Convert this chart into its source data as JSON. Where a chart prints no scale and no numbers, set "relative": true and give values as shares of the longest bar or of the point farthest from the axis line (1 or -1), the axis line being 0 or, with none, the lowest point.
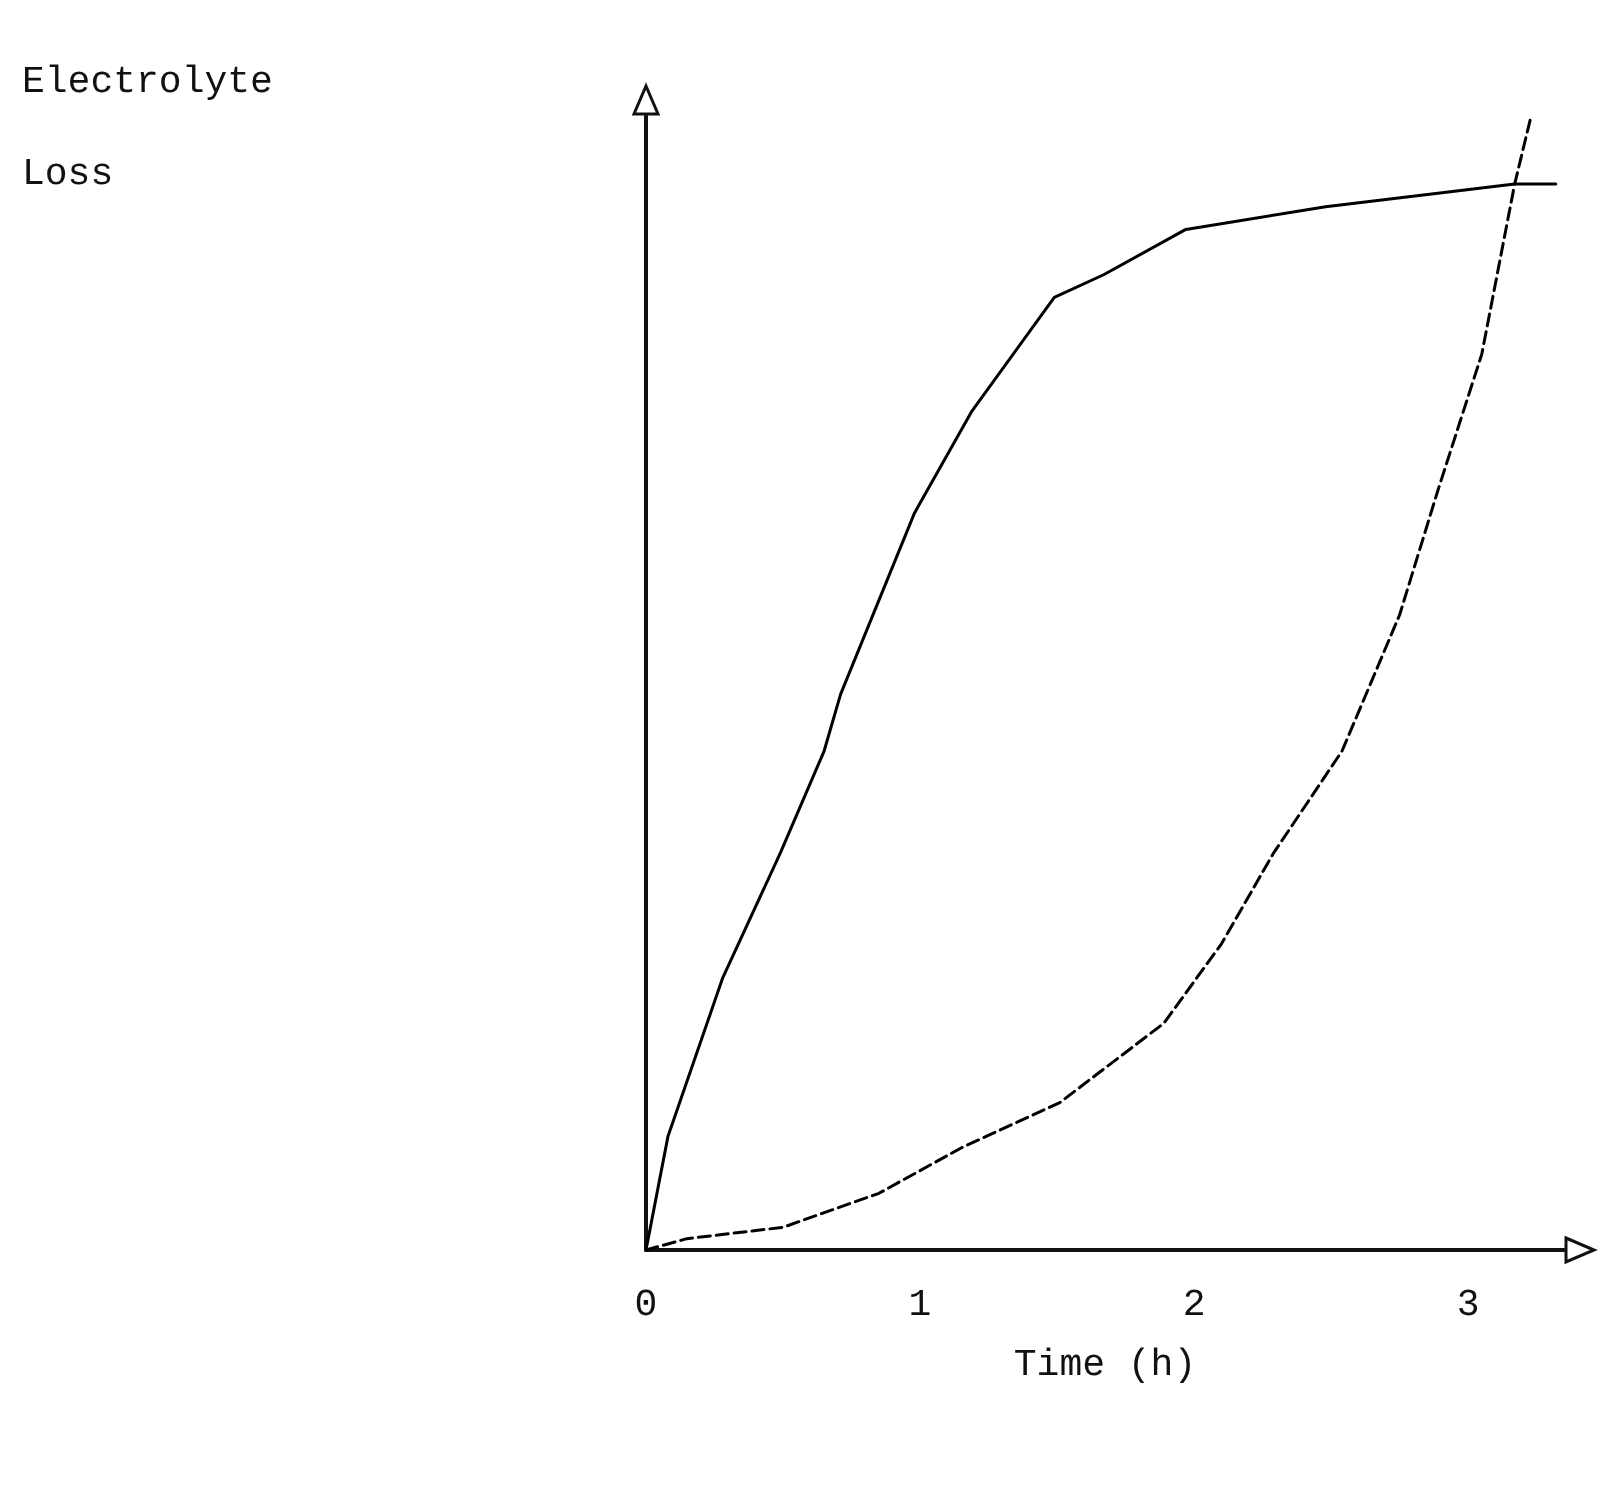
{
  "chart_data": {
    "type": "line",
    "relative": true,
    "ylabel": "Electrolyte\nLoss",
    "xlabel": "Time (h)",
    "xlim": [
      0,
      3.35
    ],
    "xticks": [
      0,
      1,
      2,
      3
    ],
    "grid": false,
    "marker": "none",
    "series": [
      {
        "color": "#000000",
        "line_style": "solid",
        "x": [
          0,
          0.08,
          0.28,
          0.49,
          0.65,
          0.71,
          0.98,
          1.19,
          1.49,
          1.67,
          1.97,
          2.48,
          3.17,
          3.32
        ],
        "values": [
          0,
          0.1,
          0.24,
          0.35,
          0.44,
          0.49,
          0.65,
          0.74,
          0.84,
          0.86,
          0.9,
          0.92,
          0.94,
          0.94
        ]
      },
      {
        "color": "#000000",
        "line_style": "dashed",
        "x": [
          0,
          0.15,
          0.5,
          0.85,
          1.15,
          1.51,
          1.89,
          2.1,
          2.29,
          2.54,
          2.75,
          2.89,
          3.05,
          3.17,
          3.23
        ],
        "values": [
          0,
          0.01,
          0.02,
          0.05,
          0.09,
          0.13,
          0.2,
          0.27,
          0.35,
          0.44,
          0.56,
          0.67,
          0.79,
          0.94,
          1
        ]
      }
    ]
  }
}
